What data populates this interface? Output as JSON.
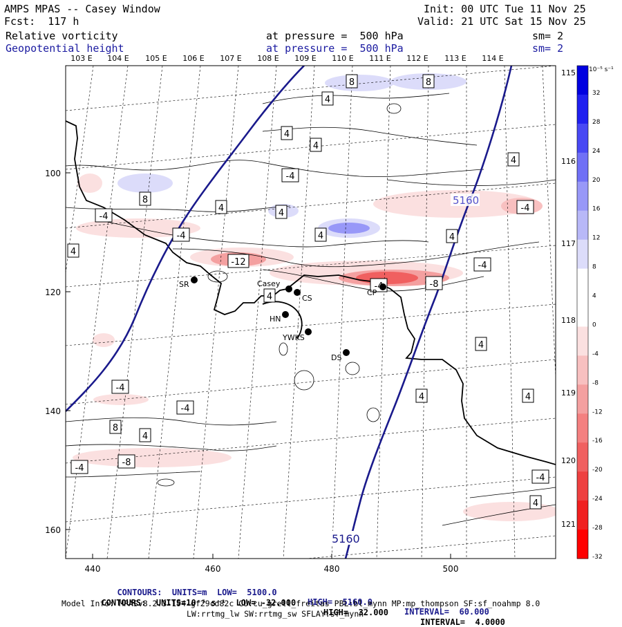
{
  "header": {
    "title": "AMPS MPAS -- Casey Window",
    "fcst": "Fcst:  117 h",
    "init": "Init: 00 UTC Tue 11 Nov 25",
    "valid": "Valid: 21 UTC Sat 15 Nov 25",
    "field1": "Relative vorticity",
    "field1_level": "at pressure =  500 hPa",
    "field1_sm": "sm= 2",
    "field2": "Geopotential height",
    "field2_level": "at pressure =  500 hPa",
    "field2_sm": "sm= 2"
  },
  "map": {
    "top_lon_labels": [
      "103 E",
      "104 E",
      "105 E",
      "106 E",
      "107 E",
      "108 E",
      "109 E",
      "110 E",
      "111 E",
      "112 E",
      "113 E",
      "114 E"
    ],
    "right_lon_labels": [
      "115 E",
      "116 E",
      "117 E",
      "118 E",
      "119 E",
      "120 E",
      "121 E"
    ],
    "y_ticks": [
      "100",
      "120",
      "140",
      "160"
    ],
    "x_ticks": [
      "440",
      "460",
      "480",
      "500"
    ],
    "height_contour_label": "5160",
    "vorticity_labels": [
      "8",
      "8",
      "4",
      "4",
      "4",
      "-4",
      "4",
      "8",
      "4",
      "4",
      "4",
      "-4",
      "-4",
      "4",
      "4",
      "-12",
      "-4",
      "-4",
      "-8",
      "4",
      "-4",
      "-4",
      "4",
      "4",
      "8",
      "4",
      "-4",
      "-8",
      "4",
      "-4",
      "-4",
      "4"
    ],
    "stations": [
      {
        "name": "SR"
      },
      {
        "name": "Casey"
      },
      {
        "name": "CS"
      },
      {
        "name": "HN"
      },
      {
        "name": "YWKS"
      },
      {
        "name": "DS"
      },
      {
        "name": "CP"
      }
    ],
    "colors": {
      "height": "#1a1a8c",
      "positive": "#3333dd",
      "negative": "#dd2222"
    }
  },
  "colorbar": {
    "unit": "10⁻⁵ s⁻¹",
    "labels": [
      "32",
      "28",
      "24",
      "20",
      "16",
      "12",
      "8",
      "4",
      "0",
      "-4",
      "-8",
      "-12",
      "-16",
      "-20",
      "-24",
      "-28",
      "-32"
    ],
    "colors": [
      "#0000e0",
      "#2020f0",
      "#4848f4",
      "#7070f6",
      "#9898f8",
      "#b8b8f8",
      "#dcdcfa",
      "#ffffff",
      "#ffffff",
      "#fbe0e0",
      "#f8c0c0",
      "#f4a0a0",
      "#f48080",
      "#f06060",
      "#ee4040",
      "#f02020",
      "#ff0000"
    ]
  },
  "footer": {
    "line1_a": "CONTOURS:  UNITS=m  LOW=  5100.0",
    "line1_b": "HIGH=  5160.0",
    "line1_c": "INTERVAL=  60.000",
    "line2_a": "CONTOURS:  UNITS=10⁻⁵ s⁻¹  LOW= -32.000",
    "line2_b": "HIGH=  32.000",
    "line2_c": "INTERVAL=  4.0000",
    "model_info": "Model Info: MPASv8.2.3-194-gf29cd82c CU:cu_grell_freitas PBL:bl_mynn MP:mp_thompson SF:sf_noahmp 8.0",
    "model_info2": "LW:rrtmg_lw SW:rrtmg_sw SFLAY:sf_mynn"
  }
}
